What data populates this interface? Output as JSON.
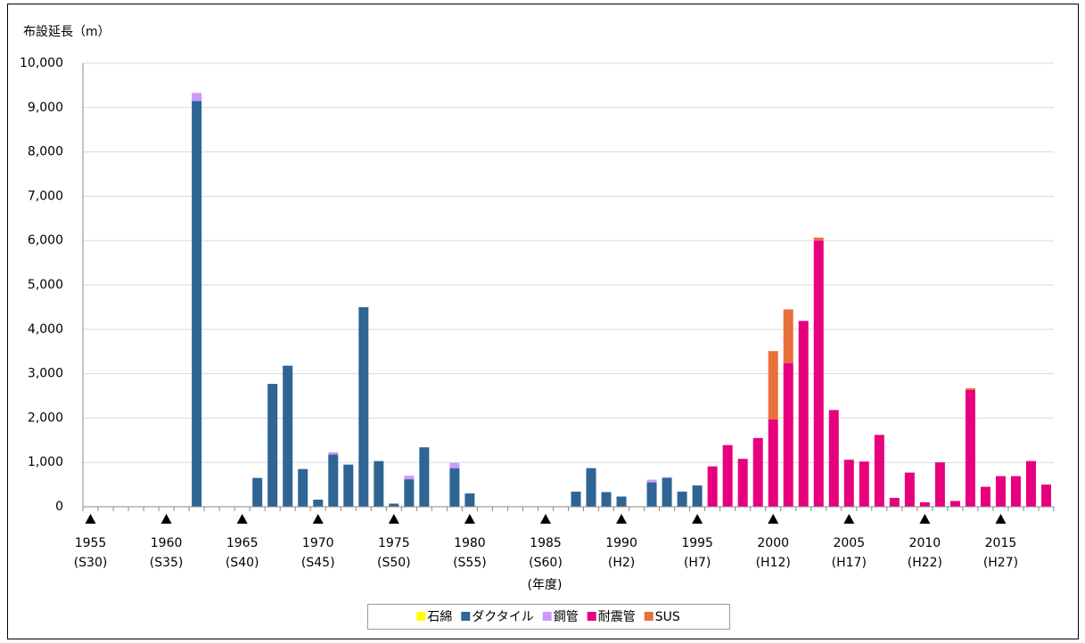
{
  "chart_data": {
    "type": "bar",
    "stacked": true,
    "y_axis_title": "布設延長（m）",
    "x_axis_label": "(年度)",
    "categories": [
      "1955\n(S30)",
      null,
      null,
      null,
      null,
      "1960\n(S35)",
      null,
      null,
      null,
      null,
      "1965\n(S40)",
      null,
      null,
      null,
      null,
      "1970\n(S45)",
      null,
      null,
      null,
      null,
      "1975\n(S50)",
      null,
      null,
      null,
      null,
      "1980\n(S55)",
      null,
      null,
      null,
      null,
      "1985\n(S60)",
      null,
      null,
      null,
      null,
      "1990\n(H2)",
      null,
      null,
      null,
      null,
      "1995\n(H7)",
      null,
      null,
      null,
      null,
      "2000\n(H12)",
      null,
      null,
      null,
      null,
      "2005\n(H17)",
      null,
      null,
      null,
      null,
      "2010\n(H22)",
      null,
      null,
      null,
      null,
      "2015\n(H27)",
      null,
      null,
      null
    ],
    "series": [
      {
        "name": "石綿",
        "color": "#ffff00",
        "values": [
          0,
          0,
          0,
          0,
          0,
          0,
          0,
          0,
          0,
          0,
          0,
          0,
          0,
          0,
          0,
          0,
          0,
          0,
          0,
          0,
          0,
          0,
          0,
          0,
          0,
          0,
          0,
          0,
          0,
          0,
          0,
          0,
          0,
          0,
          0,
          0,
          0,
          0,
          0,
          0,
          0,
          0,
          0,
          0,
          0,
          0,
          0,
          0,
          0,
          0,
          0,
          0,
          0,
          0,
          0,
          0,
          0,
          0,
          0,
          0,
          0,
          0,
          0,
          0
        ]
      },
      {
        "name": "ダクタイル",
        "color": "#2e6594",
        "values": [
          0,
          0,
          0,
          0,
          0,
          0,
          0,
          9150,
          0,
          0,
          0,
          650,
          2770,
          3180,
          850,
          160,
          1180,
          950,
          4500,
          1030,
          70,
          620,
          1340,
          0,
          870,
          300,
          0,
          0,
          0,
          0,
          0,
          0,
          340,
          870,
          330,
          230,
          0,
          550,
          650,
          340,
          480,
          0,
          0,
          0,
          0,
          0,
          0,
          0,
          0,
          0,
          0,
          0,
          0,
          0,
          0,
          0,
          0,
          0,
          0,
          0,
          0,
          0,
          0,
          0
        ]
      },
      {
        "name": "鋼管",
        "color": "#cc99ff",
        "values": [
          0,
          0,
          0,
          0,
          0,
          0,
          0,
          180,
          0,
          0,
          0,
          0,
          0,
          0,
          0,
          0,
          50,
          0,
          0,
          0,
          0,
          80,
          0,
          0,
          120,
          0,
          0,
          0,
          0,
          0,
          0,
          0,
          0,
          0,
          0,
          0,
          0,
          60,
          20,
          0,
          0,
          0,
          0,
          0,
          0,
          0,
          0,
          0,
          0,
          0,
          0,
          0,
          0,
          0,
          0,
          0,
          0,
          0,
          0,
          0,
          0,
          0,
          0,
          0
        ]
      },
      {
        "name": "耐震管",
        "color": "#e6007e",
        "values": [
          0,
          0,
          0,
          0,
          0,
          0,
          0,
          0,
          0,
          0,
          0,
          0,
          0,
          0,
          0,
          0,
          0,
          0,
          0,
          0,
          0,
          0,
          0,
          0,
          0,
          0,
          0,
          0,
          0,
          0,
          0,
          0,
          0,
          0,
          0,
          0,
          0,
          0,
          0,
          0,
          0,
          910,
          1390,
          1080,
          1550,
          1970,
          3240,
          4190,
          6000,
          2180,
          1060,
          1020,
          1620,
          200,
          770,
          100,
          1000,
          130,
          2630,
          450,
          690,
          690,
          1030,
          500
        ]
      },
      {
        "name": "SUS",
        "color": "#e8703a",
        "values": [
          0,
          0,
          0,
          0,
          0,
          0,
          0,
          0,
          0,
          0,
          0,
          0,
          0,
          0,
          0,
          0,
          0,
          0,
          0,
          0,
          0,
          0,
          0,
          0,
          0,
          0,
          0,
          0,
          0,
          0,
          0,
          0,
          0,
          0,
          0,
          0,
          0,
          0,
          0,
          0,
          0,
          0,
          0,
          0,
          0,
          1540,
          1210,
          0,
          70,
          0,
          0,
          0,
          0,
          0,
          0,
          0,
          0,
          0,
          40,
          0,
          0,
          0,
          0,
          0
        ]
      }
    ],
    "ylim": [
      0,
      10000
    ],
    "yticks": [
      0,
      {
        "value": 1000,
        "label": "1,000"
      },
      {
        "value": 2000,
        "label": "2,000"
      },
      {
        "value": 3000,
        "label": "3,000"
      },
      {
        "value": 4000,
        "label": "4,000"
      },
      {
        "value": 5000,
        "label": "5,000"
      },
      {
        "value": 6000,
        "label": "6,000"
      },
      {
        "value": 7000,
        "label": "7,000"
      },
      {
        "value": 8000,
        "label": "8,000"
      },
      {
        "value": 9000,
        "label": "9,000"
      },
      {
        "value": 10000,
        "label": "10,000"
      }
    ],
    "grid": true,
    "legend": "bottom"
  }
}
